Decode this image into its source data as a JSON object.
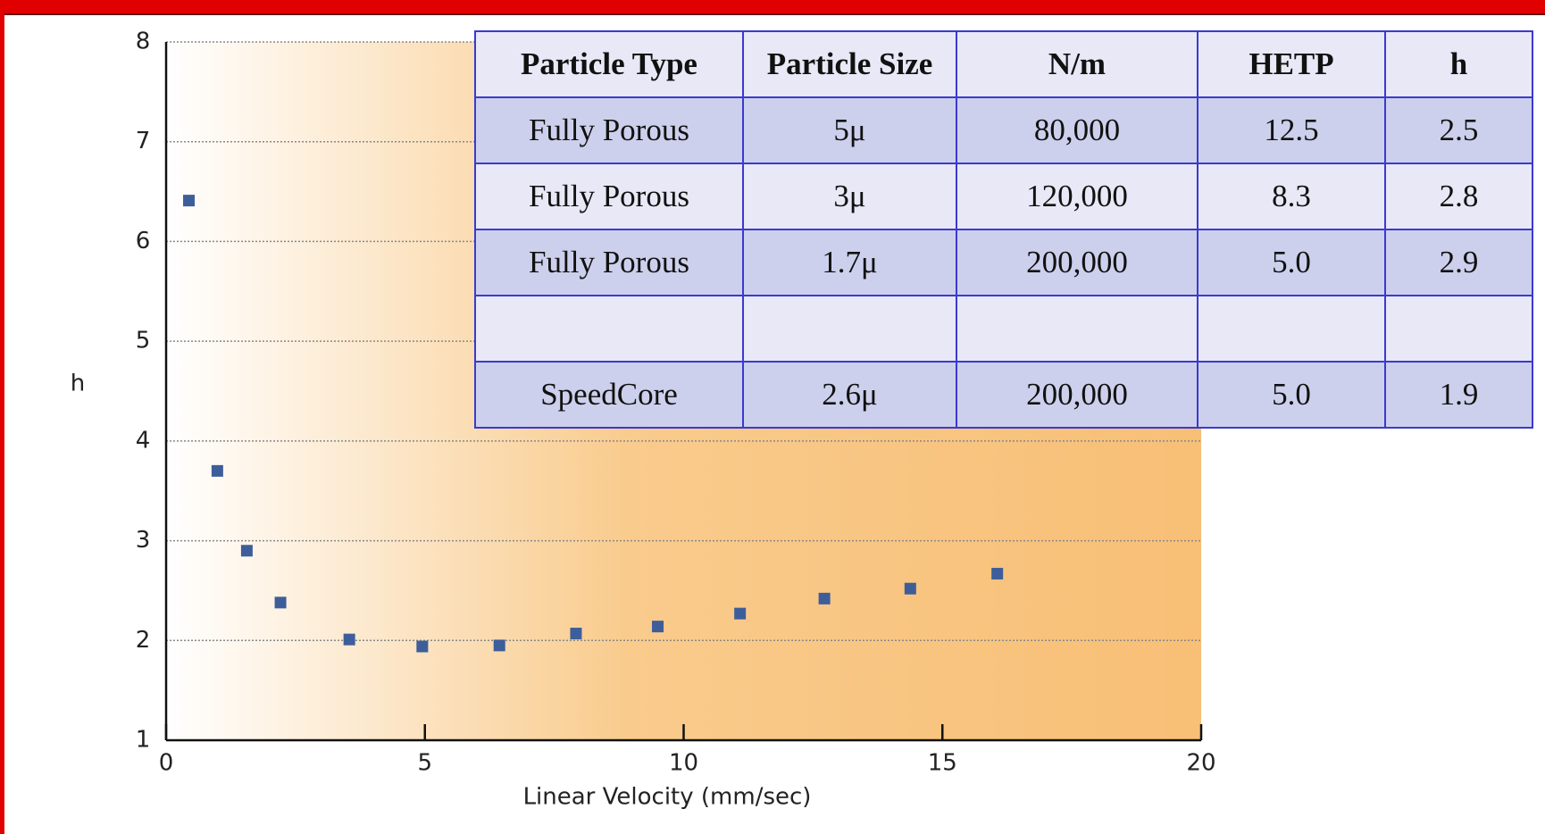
{
  "chart_data": {
    "type": "scatter",
    "x_label": "Linear Velocity (mm/sec)",
    "y_label": "h",
    "series": [
      {
        "color": "#3d5e9a",
        "x": [
          0.44,
          0.99,
          1.56,
          2.21,
          3.54,
          4.95,
          6.44,
          7.92,
          9.5,
          11.09,
          12.72,
          14.38,
          16.06
        ],
        "values": [
          6.41,
          3.7,
          2.9,
          2.38,
          2.01,
          1.94,
          1.95,
          2.07,
          2.14,
          2.27,
          2.42,
          2.52,
          2.67
        ]
      }
    ],
    "xlim": [
      0,
      20
    ],
    "ylim": [
      1,
      8
    ],
    "xticks": [
      0,
      5,
      10,
      15,
      20
    ],
    "yticks": [
      1,
      2,
      3,
      4,
      5,
      6,
      7,
      8
    ],
    "grid": true
  },
  "table": {
    "header": [
      "Particle Type",
      "Particle Size",
      "N/m",
      "HETP",
      "h"
    ],
    "rows": [
      [
        "Fully Porous",
        "5μ",
        "80,000",
        "12.5",
        "2.5"
      ],
      [
        "Fully Porous",
        "3μ",
        "120,000",
        "8.3",
        "2.8"
      ],
      [
        "Fully Porous",
        "1.7μ",
        "200,000",
        "5.0",
        "2.9"
      ],
      null,
      [
        "SpeedCore",
        "2.6μ",
        "200,000",
        "5.0",
        "1.9"
      ]
    ]
  }
}
